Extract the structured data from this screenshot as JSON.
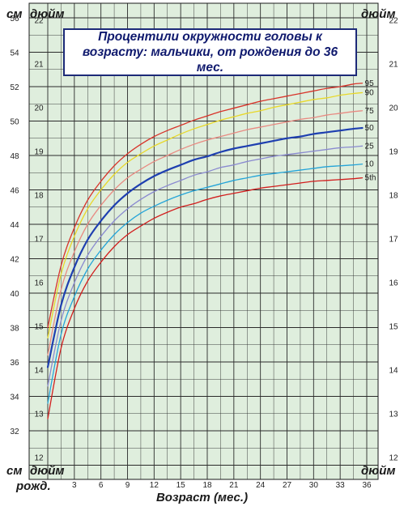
{
  "title": "Процентили окружности головы к возрасту: мальчики, от рождения до 36 мес.",
  "unit_labels": {
    "cm_top_left": "см",
    "inch_top_left": "дюйм",
    "inch_top_right": "дюйм",
    "cm_bottom_left": "см",
    "inch_bottom_left": "дюйм",
    "inch_bottom_right": "дюйм"
  },
  "xlabel": "Возраст (мес.)",
  "birth_label": "рожд.",
  "colors": {
    "background": "#dfeedd",
    "grid": "#2a2a2a",
    "p95": "#d8332a",
    "p90": "#e8d82a",
    "p75": "#e88a82",
    "p50": "#1e3fb0",
    "p25": "#8a8ad0",
    "p10": "#24a4d8",
    "p5": "#d21e1e"
  },
  "chart_data": {
    "type": "line",
    "title": "Процентили окружности головы к возрасту: мальчики, от рождения до 36 мес.",
    "xlabel": "Возраст (мес.)",
    "ylabel_left": "см",
    "ylabel_right": "дюйм",
    "xlim": [
      0,
      37.5
    ],
    "ylim": [
      30,
      57
    ],
    "x_ticks": [
      3,
      6,
      9,
      12,
      15,
      18,
      21,
      24,
      27,
      30,
      33,
      36
    ],
    "x_tick_labels": [
      "3",
      "6",
      "9",
      "12",
      "15",
      "18",
      "21",
      "24",
      "27",
      "30",
      "33",
      "36"
    ],
    "y_ticks_cm": [
      32,
      34,
      36,
      38,
      40,
      42,
      44,
      46,
      48,
      50,
      52,
      54,
      56
    ],
    "y_ticks_inch": [
      12,
      13,
      14,
      15,
      16,
      17,
      18,
      19,
      20,
      21,
      22
    ],
    "grid": true,
    "x": [
      0,
      1.5,
      3,
      4.5,
      6,
      7.5,
      9,
      10.5,
      12,
      13.5,
      15,
      16.5,
      18,
      19.5,
      21,
      22.5,
      24,
      25.5,
      27,
      28.5,
      30,
      31.5,
      33,
      34.5,
      35.5
    ],
    "series": [
      {
        "name": "95",
        "color_key": "p95",
        "values": [
          38.0,
          41.6,
          43.8,
          45.4,
          46.5,
          47.4,
          48.1,
          48.65,
          49.1,
          49.45,
          49.75,
          50.05,
          50.3,
          50.55,
          50.75,
          50.95,
          51.15,
          51.3,
          51.45,
          51.6,
          51.75,
          51.9,
          52.0,
          52.15,
          52.2
        ]
      },
      {
        "name": "90",
        "color_key": "p90",
        "values": [
          37.4,
          41.1,
          43.3,
          44.9,
          46.0,
          46.9,
          47.6,
          48.1,
          48.55,
          48.9,
          49.25,
          49.55,
          49.8,
          50.05,
          50.25,
          50.45,
          50.6,
          50.8,
          50.95,
          51.1,
          51.25,
          51.35,
          51.5,
          51.6,
          51.65
        ]
      },
      {
        "name": "75",
        "color_key": "p75",
        "values": [
          36.4,
          40.2,
          42.4,
          44.0,
          45.1,
          46.0,
          46.7,
          47.2,
          47.65,
          48.0,
          48.35,
          48.65,
          48.9,
          49.1,
          49.3,
          49.5,
          49.65,
          49.8,
          49.95,
          50.1,
          50.2,
          50.35,
          50.45,
          50.55,
          50.6
        ]
      },
      {
        "name": "50",
        "color_key": "p50",
        "values": [
          35.7,
          39.3,
          41.5,
          43.1,
          44.2,
          45.1,
          45.8,
          46.35,
          46.8,
          47.15,
          47.45,
          47.75,
          47.95,
          48.2,
          48.4,
          48.55,
          48.7,
          48.85,
          49.0,
          49.1,
          49.25,
          49.35,
          49.45,
          49.55,
          49.6
        ]
      },
      {
        "name": "25",
        "color_key": "p25",
        "values": [
          34.6,
          38.4,
          40.6,
          42.2,
          43.3,
          44.2,
          44.9,
          45.45,
          45.9,
          46.25,
          46.55,
          46.85,
          47.05,
          47.3,
          47.45,
          47.65,
          47.8,
          47.95,
          48.05,
          48.15,
          48.25,
          48.35,
          48.45,
          48.5,
          48.55
        ]
      },
      {
        "name": "10",
        "color_key": "p10",
        "values": [
          33.6,
          37.6,
          39.8,
          41.4,
          42.5,
          43.4,
          44.1,
          44.65,
          45.05,
          45.4,
          45.7,
          45.95,
          46.15,
          46.35,
          46.55,
          46.7,
          46.85,
          46.95,
          47.05,
          47.15,
          47.25,
          47.35,
          47.4,
          47.45,
          47.5
        ]
      },
      {
        "name": "5th",
        "color_key": "p5",
        "values": [
          32.7,
          36.8,
          39.1,
          40.7,
          41.8,
          42.7,
          43.4,
          43.9,
          44.35,
          44.7,
          45.0,
          45.2,
          45.45,
          45.65,
          45.8,
          45.95,
          46.1,
          46.2,
          46.3,
          46.4,
          46.5,
          46.55,
          46.6,
          46.65,
          46.7
        ]
      }
    ]
  }
}
